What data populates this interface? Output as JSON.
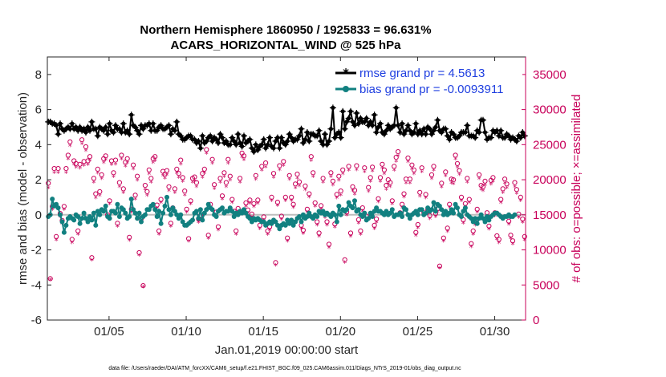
{
  "chart_data": {
    "type": "line",
    "title_line1": "Northern Hemisphere 1860950 / 1925833 = 96.631%",
    "title_line2": "ACARS_HORIZONTAL_WIND @ 525 hPa",
    "xlabel": "Jan.01,2019 00:00:00 start",
    "ylabel": "rmse and bias (model - observation)",
    "ylabel_right": "# of obs: o=possible; ×=assimilated",
    "footnote": "data file: /Users/raeder/DAI/ATM_forcXX/CAM6_setup/f.e21.FHIST_BGC.f09_025.CAM6assim.011/Diags_NTrS_2019-01/obs_diag_output.nc",
    "xlim": [
      1.0,
      32.0
    ],
    "ylim": [
      -6,
      9
    ],
    "ylim_right": [
      0,
      37500
    ],
    "x_ticks": [
      5,
      10,
      15,
      20,
      25,
      30
    ],
    "x_tick_labels": [
      "01/05",
      "01/10",
      "01/15",
      "01/20",
      "01/25",
      "01/30"
    ],
    "y_ticks": [
      -6,
      -4,
      -2,
      0,
      2,
      4,
      6,
      8
    ],
    "y_tick_labels": [
      "-6",
      "-4",
      "-2",
      "0",
      "2",
      "4",
      "6",
      "8"
    ],
    "y2_ticks": [
      0,
      5000,
      10000,
      15000,
      20000,
      25000,
      30000,
      35000
    ],
    "y2_tick_labels": [
      "0",
      "5000",
      "10000",
      "15000",
      "20000",
      "25000",
      "30000",
      "35000"
    ],
    "colors": {
      "rmse": "#000000",
      "bias": "#118080",
      "obs": "#c8005a",
      "legend_text": "#1f3fe0",
      "zero_line": "#bdbdbd"
    },
    "series": [
      {
        "name": "rmse grand pr = 4.5613",
        "values": [
          5.3,
          5.3,
          5.2,
          5.2,
          5.1,
          4.6,
          5.2,
          4.9,
          4.8,
          4.9,
          5.0,
          4.9,
          5.2,
          4.9,
          5.0,
          4.8,
          5.0,
          4.8,
          4.9,
          4.7,
          5.0,
          4.8,
          5.3,
          4.9,
          4.9,
          4.5,
          5.0,
          4.9,
          4.8,
          5.0,
          4.6,
          5.2,
          4.8,
          4.7,
          5.1,
          4.9,
          4.9,
          4.7,
          5.2,
          4.7,
          4.8,
          4.6,
          5.7,
          5.1,
          5.0,
          4.8,
          4.6,
          5.1,
          4.9,
          5.1,
          5.1,
          5.2,
          4.8,
          5.2,
          4.8,
          4.8,
          5.0,
          5.1,
          4.9,
          4.9,
          5.0,
          5.1,
          4.6,
          4.9,
          4.8,
          5.3,
          4.6,
          4.5,
          4.3,
          4.3,
          4.4,
          4.5,
          4.5,
          4.3,
          4.3,
          4.1,
          4.2,
          3.8,
          4.5,
          4.1,
          4.2,
          4.4,
          4.5,
          4.2,
          4.4,
          4.3,
          4.1,
          4.6,
          4.4,
          4.1,
          4.2,
          4.0,
          4.0,
          4.4,
          4.2,
          4.0,
          4.6,
          4.1,
          3.9,
          4.5,
          4.1,
          4.2,
          4.3,
          3.8,
          3.6,
          4.0,
          3.7,
          3.9,
          4.0,
          4.3,
          3.8,
          4.0,
          4.4,
          3.9,
          3.8,
          4.2,
          4.4,
          3.8,
          4.4,
          4.1,
          4.0,
          4.2,
          4.6,
          4.4,
          4.2,
          4.3,
          4.3,
          4.5,
          4.9,
          4.1,
          4.3,
          4.7,
          4.2,
          4.6,
          4.6,
          4.5,
          4.5,
          4.8,
          4.2,
          4.0,
          4.6,
          4.0,
          4.2,
          4.9,
          6.1,
          4.4,
          4.6,
          4.7,
          4.4,
          5.9,
          4.9,
          5.3,
          5.5,
          5.9,
          5.3,
          5.1,
          5.8,
          5.2,
          5.5,
          5.3,
          5.3,
          5.5,
          5.1,
          5.3,
          5.1,
          5.7,
          4.7,
          5.0,
          5.2,
          4.7,
          4.6,
          4.8,
          5.1,
          4.9,
          5.0,
          5.1,
          6.1,
          5.1,
          4.7,
          5.2,
          4.6,
          4.8,
          5.1,
          4.8,
          4.6,
          4.7,
          5.2,
          4.6,
          4.8,
          4.6,
          4.9,
          4.6,
          5.0,
          4.9,
          4.6,
          4.8,
          5.0,
          5.4,
          4.8,
          4.7,
          4.9,
          4.9,
          4.5,
          4.3,
          4.7,
          4.6,
          4.4,
          4.4,
          4.5,
          4.7,
          4.7,
          4.7,
          5.1,
          4.5,
          4.5,
          4.5,
          4.4,
          4.8,
          4.7,
          5.4,
          5.4,
          4.7,
          4.3,
          4.4,
          4.4,
          4.8,
          4.7,
          4.8,
          4.5,
          4.8,
          4.4,
          4.4,
          4.6,
          4.5,
          4.3,
          4.4,
          4.3,
          4.2,
          4.5,
          4.4,
          4.7,
          4.5
        ]
      },
      {
        "name": "bias grand pr = -0.0093911",
        "values": [
          -0.1,
          0.0,
          0.9,
          0.5,
          0.6,
          0.4,
          0.0,
          -0.4,
          -1.0,
          -0.6,
          -0.2,
          -0.1,
          -0.2,
          -0.3,
          0.0,
          -0.1,
          -0.5,
          -0.2,
          0.1,
          -0.2,
          -0.4,
          -0.1,
          -0.3,
          0.1,
          -0.6,
          0.2,
          0.0,
          0.3,
          0.2,
          0.5,
          -0.1,
          -0.2,
          0.2,
          0.2,
          0.1,
          0.6,
          -0.1,
          0.4,
          0.3,
          0.1,
          -0.2,
          -0.1,
          0.9,
          0.3,
          0.1,
          -0.2,
          0.1,
          -0.4,
          -0.1,
          0.0,
          0.3,
          0.3,
          0.5,
          0.6,
          0.3,
          -0.1,
          0.2,
          -0.5,
          0.1,
          0.5,
          1.0,
          0.3,
          0.0,
          0.4,
          0.2,
          0.0,
          -0.2,
          0.0,
          -0.4,
          -0.6,
          -0.6,
          -0.5,
          -0.4,
          -0.3,
          0.1,
          0.2,
          -0.2,
          0.3,
          -0.3,
          0.1,
          0.3,
          0.6,
          0.4,
          0.3,
          0.0,
          -0.1,
          0.2,
          0.3,
          0.4,
          0.1,
          0.2,
          0.2,
          0.4,
          0.2,
          -0.1,
          0.1,
          0.0,
          0.2,
          0.1,
          0.3,
          0.1,
          -0.1,
          -0.2,
          -0.4,
          -0.2,
          -0.3,
          -0.2,
          -0.3,
          -0.4,
          -0.4,
          -0.6,
          -0.5,
          -0.4,
          -0.5,
          -0.3,
          -0.4,
          -0.6,
          -0.8,
          -0.6,
          -0.5,
          -0.6,
          -0.3,
          -0.5,
          -0.3,
          -0.6,
          -0.4,
          -0.2,
          -0.1,
          -0.4,
          0.0,
          -0.2,
          -0.1,
          0.1,
          -0.1,
          -0.2,
          0.0,
          -0.1,
          0.2,
          0.1,
          0.2,
          0.0,
          0.1,
          0.0,
          -0.1,
          0.1,
          0.0,
          -0.4,
          0.5,
          0.0,
          0.3,
          0.2,
          0.3,
          0.7,
          0.5,
          0.4,
          0.8,
          0.2,
          0.3,
          0.0,
          -0.1,
          0.1,
          -0.3,
          -0.2,
          0.1,
          -0.1,
          0.2,
          0.4,
          0.2,
          0.2,
          0.1,
          0.0,
          0.2,
          0.0,
          0.1,
          0.3,
          -0.1,
          0.0,
          0.0,
          0.1,
          -0.1,
          0.4,
          0.3,
          0.0,
          -0.2,
          0.0,
          0.1,
          0.2,
          0.0,
          0.3,
          0.3,
          0.0,
          0.1,
          0.4,
          0.2,
          0.3,
          0.7,
          0.2,
          0.6,
          0.5,
          0.3,
          0.0,
          0.2,
          0.0,
          0.1,
          0.3,
          0.1,
          0.6,
          0.4,
          0.0,
          -0.1,
          0.2,
          0.4,
          0.0,
          -0.1,
          -0.2,
          -0.4,
          -0.2,
          -0.5,
          -0.2,
          0.0,
          -0.2,
          -0.4,
          -0.1,
          -0.3,
          -0.1,
          0.0,
          0.1,
          0.1,
          0.0,
          -0.1,
          -0.2,
          -0.1,
          -0.1,
          0.0,
          -0.1,
          -0.1,
          0.0
        ]
      },
      {
        "name": "possible",
        "values": [
          19500,
          5900,
          16200,
          21600,
          11900,
          21600,
          15200,
          14200,
          16200,
          21600,
          23500,
          25400,
          11500,
          22700,
          22300,
          12700,
          22200,
          25700,
          22600,
          24700,
          22700,
          23300,
          8900,
          20200,
          18000,
          21500,
          18300,
          20700,
          23000,
          23400,
          15000,
          17000,
          22700,
          21000,
          22800,
          13800,
          19600,
          23500,
          18700,
          22500,
          23000,
          11800,
          15800,
          22100,
          17800,
          20500,
          9600,
          14400,
          4900,
          19200,
          18300,
          21400,
          20200,
          23000,
          23300,
          16400,
          12700,
          17200,
          21200,
          20800,
          21300,
          19000,
          13800,
          16000,
          18700,
          21500,
          20900,
          22800,
          20300,
          18400,
          15800,
          11600,
          17000,
          20200,
          20400,
          19600,
          14400,
          14900,
          20900,
          21500,
          24300,
          12100,
          16500,
          22900,
          19300,
          15400,
          13300,
          20200,
          17700,
          21000,
          19600,
          22900,
          20500,
          17200,
          15500,
          12700,
          15900,
          20200,
          23800,
          23400,
          16700,
          15700,
          17100,
          15100,
          16600,
          20600,
          17100,
          13500,
          21900,
          14700,
          22400,
          12700,
          13300,
          17500,
          20900,
          8200,
          16800,
          22000,
          14800,
          22600,
          17500,
          11700,
          20600,
          17500,
          16500,
          19400,
          20800,
          19700,
          13500,
          12800,
          19100,
          15800,
          18000,
          23300,
          21000,
          16700,
          14000,
          12400,
          16300,
          20200,
          15100,
          14000,
          10800,
          21000,
          19800,
          13700,
          17900,
          20500,
          18400,
          21400,
          8600,
          15400,
          21900,
          12400,
          19000,
          18500,
          22000,
          14300,
          12700,
          16000,
          21700,
          14800,
          18900,
          20300,
          21800,
          13500,
          14400,
          17300,
          20300,
          22200,
          21400,
          19200,
          20000,
          19600,
          17000,
          21900,
          23200,
          24000,
          15300,
          16500,
          18000,
          20100,
          23100,
          20100,
          22100,
          21400,
          12500,
          13600,
          18200,
          21700,
          15300,
          17900,
          15700,
          14900,
          20700,
          21900,
          15200,
          15900,
          7700,
          19500,
          11700,
          21100,
          13100,
          16500,
          20100,
          20000,
          23500,
          22300,
          21300,
          17500,
          14300,
          16600,
          20200,
          17200,
          10900,
          12700,
          14000,
          15800,
          20700,
          19200,
          19000,
          19800,
          15300,
          13400,
          19900,
          20300,
          15300,
          12000,
          11500,
          17200,
          18700,
          20100,
          19400,
          14100,
          12100,
          11300,
          19600,
          18600,
          15100,
          17500,
          14400,
          11900
        ]
      },
      {
        "name": "assimilated",
        "values": [
          18800,
          5700,
          15700,
          21000,
          11400,
          21000,
          14700,
          13700,
          15700,
          21000,
          22900,
          24800,
          11000,
          22100,
          21700,
          12200,
          21600,
          25100,
          22000,
          24100,
          22100,
          22700,
          8500,
          19600,
          17400,
          20900,
          17700,
          20100,
          22400,
          22800,
          14500,
          16500,
          22100,
          20400,
          22200,
          13300,
          19000,
          22900,
          18100,
          21900,
          22400,
          11300,
          15300,
          21500,
          17200,
          19900,
          9200,
          13900,
          4700,
          18600,
          17700,
          20800,
          19600,
          22400,
          22700,
          15900,
          12200,
          16700,
          20600,
          20200,
          20700,
          18400,
          13300,
          15500,
          18100,
          20900,
          20300,
          22200,
          19700,
          17800,
          15300,
          11200,
          16500,
          19600,
          19800,
          19000,
          13900,
          14400,
          20300,
          20900,
          23700,
          11600,
          16000,
          22300,
          18700,
          14900,
          12800,
          19600,
          17200,
          20400,
          19000,
          22300,
          19900,
          16700,
          15000,
          12200,
          15400,
          19600,
          23200,
          22800,
          16200,
          15200,
          16600,
          14600,
          16100,
          20000,
          16600,
          13000,
          21300,
          14200,
          21800,
          12200,
          12800,
          17000,
          20300,
          7800,
          16300,
          21400,
          14300,
          22000,
          17000,
          11200,
          20000,
          17000,
          16000,
          18800,
          20200,
          19100,
          13000,
          12300,
          18500,
          15300,
          17500,
          22700,
          20400,
          16200,
          13500,
          11900,
          15800,
          19600,
          14600,
          13500,
          10300,
          20400,
          19200,
          13200,
          17400,
          19900,
          17800,
          20800,
          8200,
          14900,
          21300,
          11900,
          18400,
          17900,
          21400,
          13800,
          12200,
          15500,
          21100,
          14300,
          18300,
          19700,
          21200,
          13000,
          13900,
          16800,
          19700,
          21600,
          20800,
          18600,
          19400,
          19000,
          16500,
          21300,
          22600,
          23400,
          14800,
          16000,
          17500,
          19500,
          22500,
          19500,
          21500,
          20800,
          12000,
          13100,
          17600,
          21100,
          14800,
          17400,
          15200,
          14400,
          20100,
          21300,
          14700,
          15400,
          7400,
          18900,
          11200,
          20500,
          12600,
          16000,
          19500,
          19400,
          22900,
          21700,
          20700,
          17000,
          13800,
          16100,
          19600,
          16700,
          10400,
          12200,
          13500,
          15300,
          20100,
          18600,
          18400,
          19200,
          14800,
          12900,
          19300,
          19700,
          14800,
          11500,
          11000,
          16700,
          18100,
          19500,
          18800,
          13600,
          11600,
          10800,
          19000,
          18000,
          14600,
          17000,
          13900,
          11400
        ]
      }
    ]
  }
}
